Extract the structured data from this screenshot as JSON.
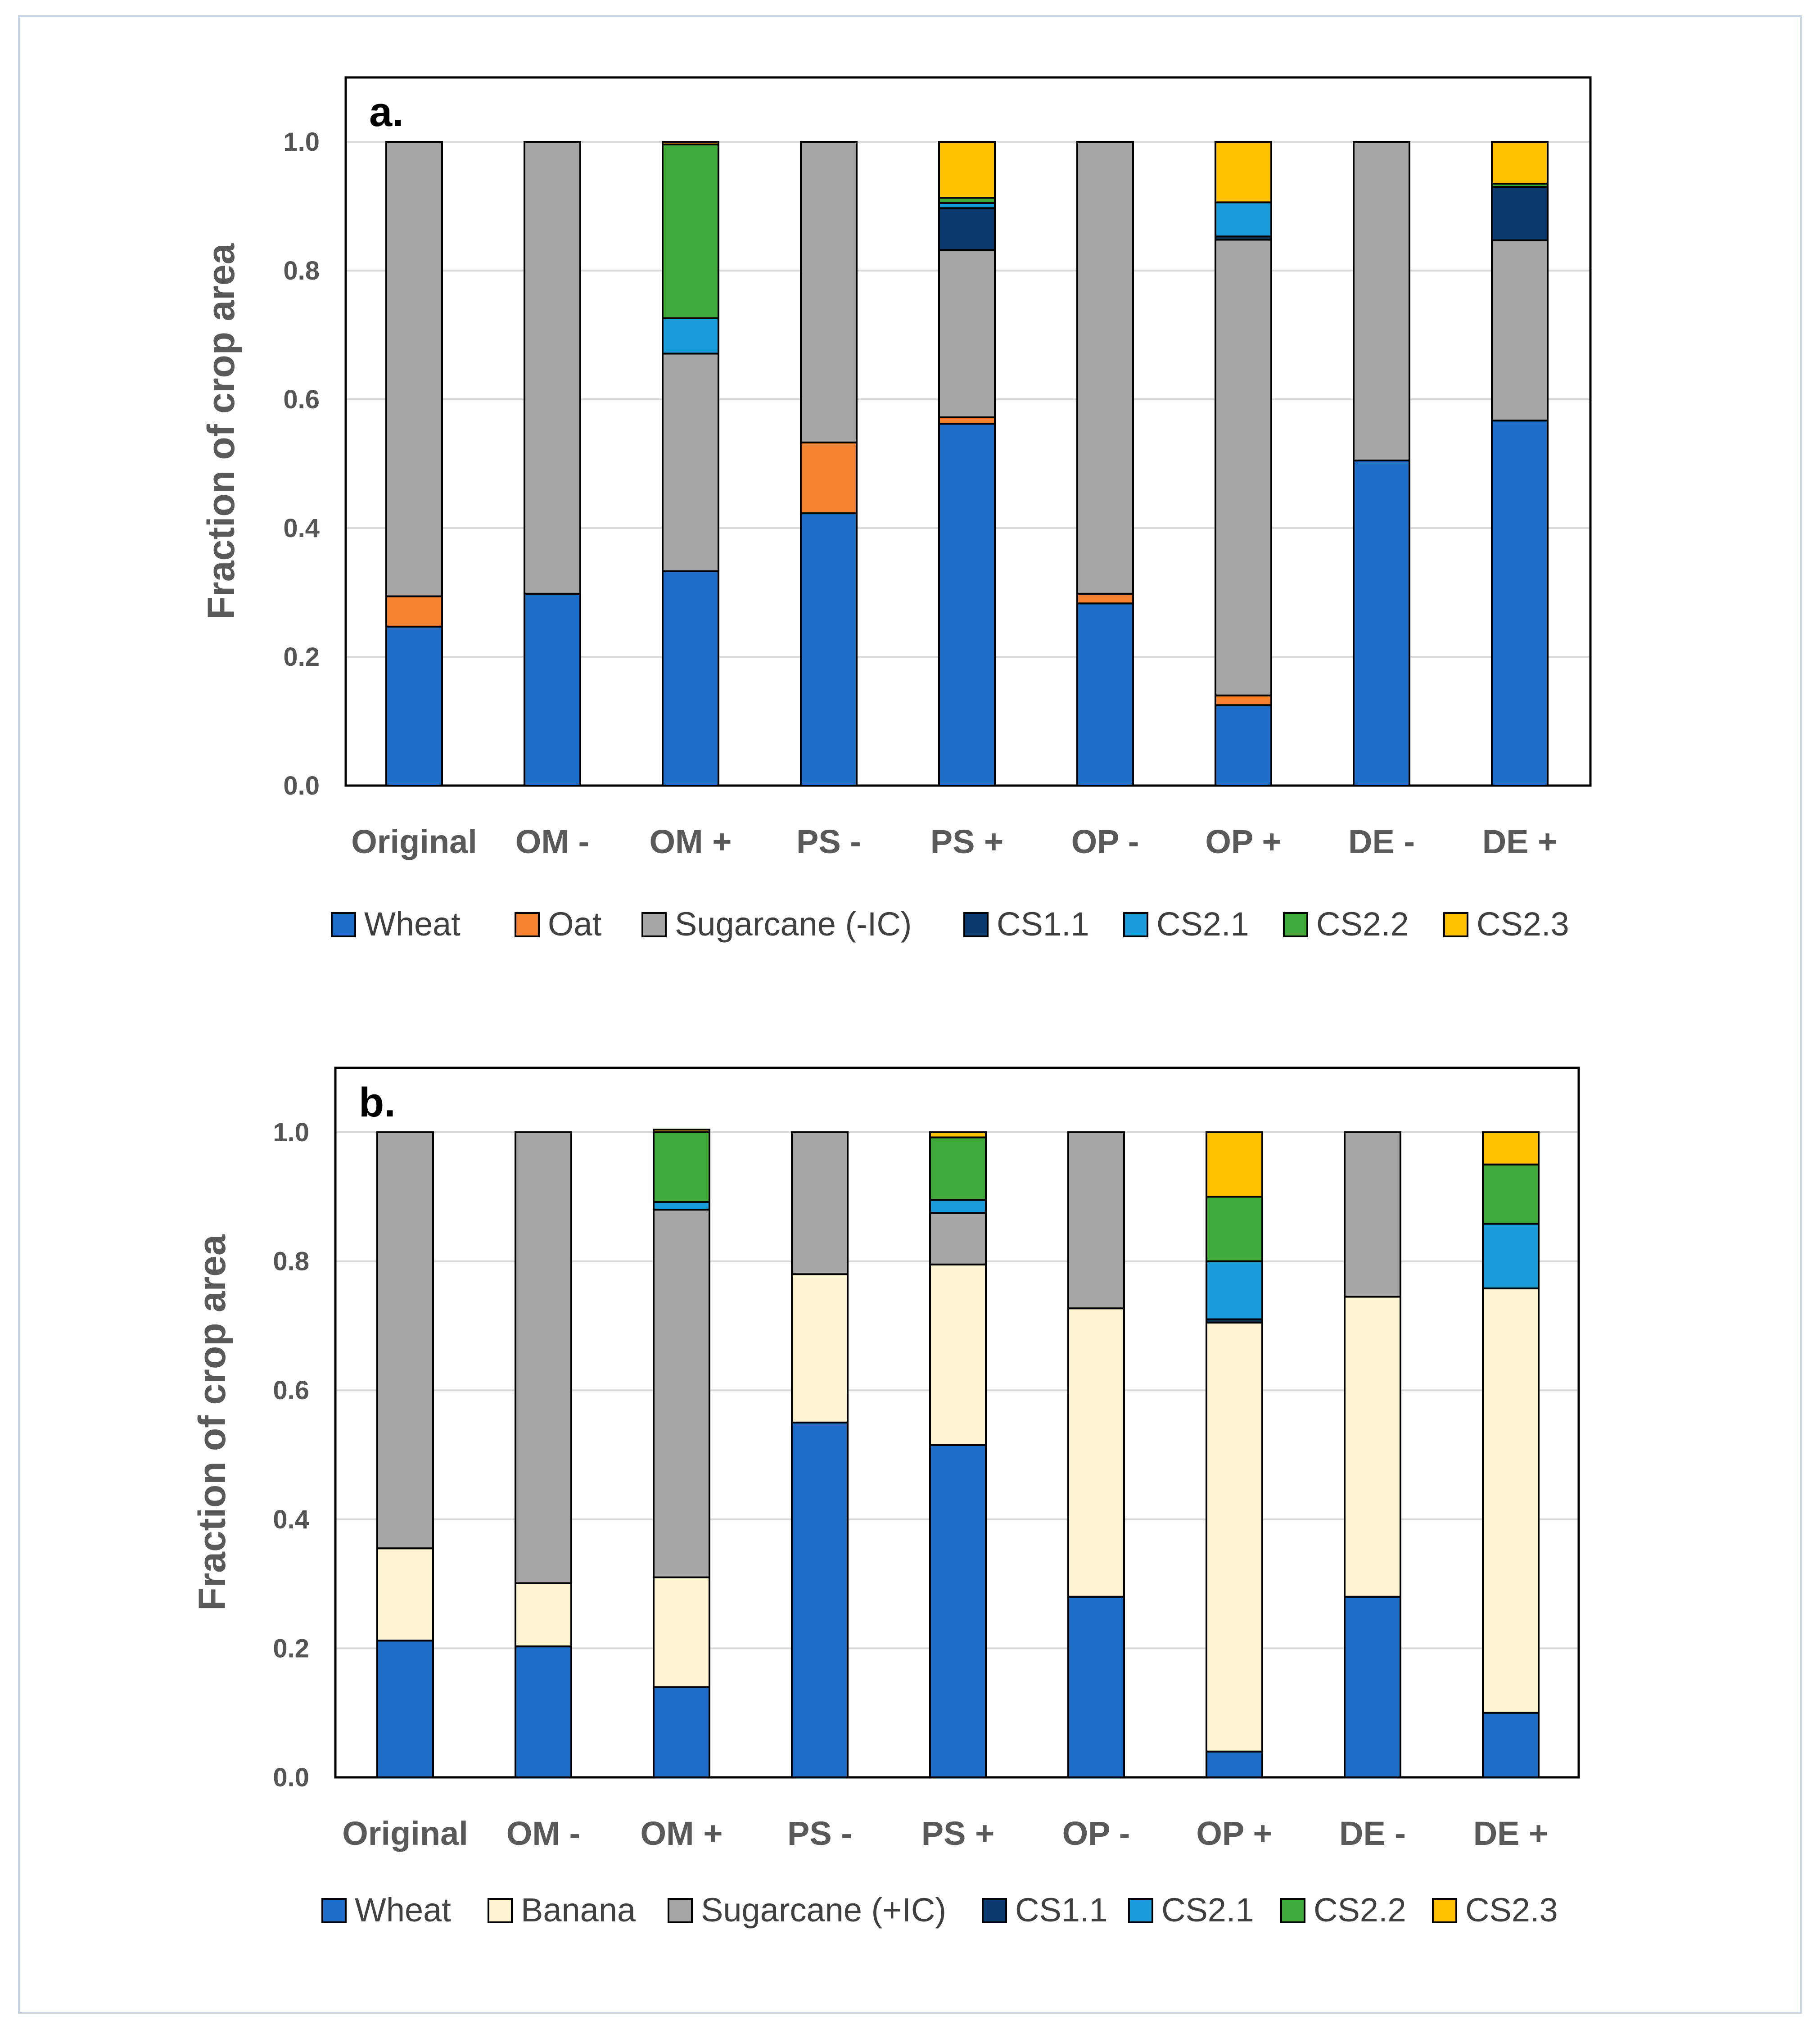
{
  "chart_data": [
    {
      "type": "bar",
      "stacked": true,
      "panel_label": "a.",
      "ylabel": "Fraction of crop area",
      "ylim": [
        0,
        1.0
      ],
      "yticks": [
        "0.0",
        "0.2",
        "0.4",
        "0.6",
        "0.8",
        "1.0"
      ],
      "grid": true,
      "legend_position": "bottom",
      "categories": [
        "Original",
        "OM -",
        "OM +",
        "PS -",
        "PS +",
        "OP -",
        "OP +",
        "DE -",
        "DE +"
      ],
      "series": [
        {
          "name": "Wheat",
          "color": "#1f6fc8",
          "values": [
            0.247,
            0.298,
            0.333,
            0.423,
            0.562,
            0.283,
            0.125,
            0.505,
            0.567
          ]
        },
        {
          "name": "Oat",
          "color": "#f58230",
          "values": [
            0.047,
            0.0,
            0.0,
            0.11,
            0.01,
            0.015,
            0.015,
            0.0,
            0.0
          ]
        },
        {
          "name": "Sugarcane (-IC)",
          "color": "#a6a6a6",
          "values": [
            0.706,
            0.702,
            0.338,
            0.467,
            0.26,
            0.702,
            0.708,
            0.495,
            0.28
          ]
        },
        {
          "name": "CS1.1",
          "color": "#0b3b6e",
          "values": [
            0.0,
            0.0,
            0.0,
            0.0,
            0.065,
            0.0,
            0.005,
            0.0,
            0.083
          ]
        },
        {
          "name": "CS2.1",
          "color": "#1b9ad8",
          "values": [
            0.0,
            0.0,
            0.055,
            0.0,
            0.008,
            0.0,
            0.053,
            0.0,
            0.0
          ]
        },
        {
          "name": "CS2.2",
          "color": "#3faa3a",
          "values": [
            0.0,
            0.0,
            0.27,
            0.0,
            0.008,
            0.0,
            0.0,
            0.0,
            0.005
          ]
        },
        {
          "name": "CS2.3",
          "color": "#ffc000",
          "values": [
            0.0,
            0.0,
            0.004,
            0.0,
            0.087,
            0.0,
            0.094,
            0.0,
            0.065
          ]
        }
      ]
    },
    {
      "type": "bar",
      "stacked": true,
      "panel_label": "b.",
      "ylabel": "Fraction of crop area",
      "ylim": [
        0,
        1.0
      ],
      "yticks": [
        "0.0",
        "0.2",
        "0.4",
        "0.6",
        "0.8",
        "1.0"
      ],
      "grid": true,
      "legend_position": "bottom",
      "categories": [
        "Original",
        "OM -",
        "OM +",
        "PS -",
        "PS +",
        "OP -",
        "OP +",
        "DE -",
        "DE +"
      ],
      "series": [
        {
          "name": "Wheat",
          "color": "#1f6fc8",
          "values": [
            0.212,
            0.203,
            0.14,
            0.55,
            0.515,
            0.28,
            0.04,
            0.28,
            0.1
          ]
        },
        {
          "name": "Banana",
          "color": "#fef3d0",
          "values": [
            0.143,
            0.098,
            0.17,
            0.23,
            0.28,
            0.447,
            0.665,
            0.465,
            0.658
          ]
        },
        {
          "name": "Sugarcane (+IC)",
          "color": "#a6a6a6",
          "values": [
            0.645,
            0.699,
            0.57,
            0.22,
            0.08,
            0.273,
            0.0,
            0.255,
            0.0
          ]
        },
        {
          "name": "CS1.1",
          "color": "#0b3b6e",
          "values": [
            0.0,
            0.0,
            0.0,
            0.0,
            0.0,
            0.0,
            0.005,
            0.0,
            0.0
          ]
        },
        {
          "name": "CS2.1",
          "color": "#1b9ad8",
          "values": [
            0.0,
            0.0,
            0.012,
            0.0,
            0.02,
            0.0,
            0.09,
            0.0,
            0.1
          ]
        },
        {
          "name": "CS2.2",
          "color": "#3faa3a",
          "values": [
            0.0,
            0.0,
            0.108,
            0.0,
            0.097,
            0.0,
            0.1,
            0.0,
            0.092
          ]
        },
        {
          "name": "CS2.3",
          "color": "#ffc000",
          "values": [
            0.0,
            0.0,
            0.004,
            0.0,
            0.008,
            0.0,
            0.1,
            0.0,
            0.05
          ]
        }
      ]
    }
  ]
}
